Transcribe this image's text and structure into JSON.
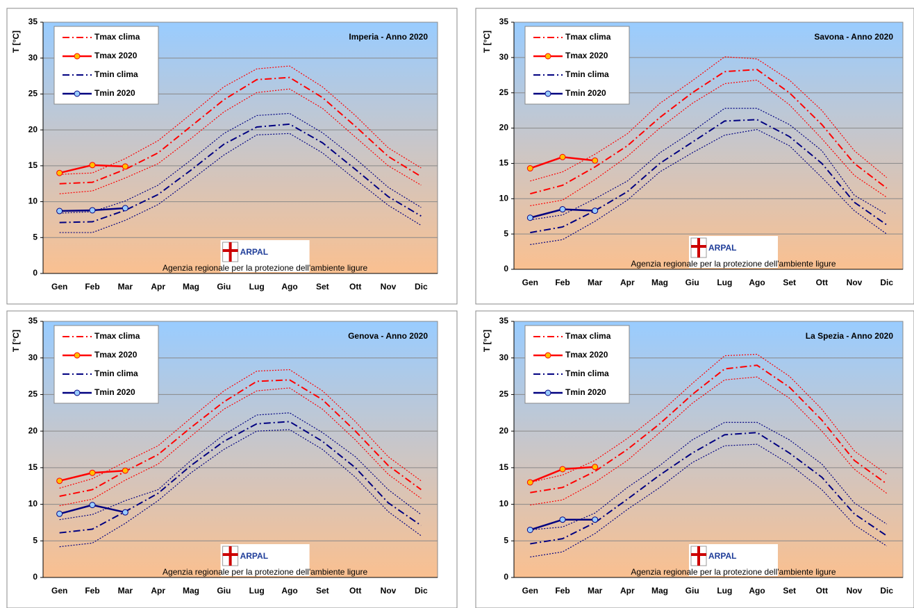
{
  "chart_data": [
    {
      "type": "line",
      "title": "Imperia - Anno 2020",
      "ylabel": "T [°C]",
      "categories": [
        "Gen",
        "Feb",
        "Mar",
        "Apr",
        "Mag",
        "Giu",
        "Lug",
        "Ago",
        "Set",
        "Ott",
        "Nov",
        "Dic"
      ],
      "ylim": [
        0,
        35
      ],
      "yticks": [
        0,
        5,
        10,
        15,
        20,
        25,
        30,
        35
      ],
      "grid": true,
      "legend": "upper left",
      "logo": {
        "text": "ARPAL",
        "caption": "Agenzia regionale per la protezione dell'ambiente ligure"
      },
      "series": [
        {
          "color": "#ff0000",
          "dash": "dot",
          "values": [
            13.8,
            14,
            16,
            18.5,
            22.2,
            26,
            28.5,
            28.9,
            26,
            22,
            17.5,
            14.7
          ]
        },
        {
          "color": "#ff0000",
          "dash": "dot",
          "values": [
            11.1,
            11.5,
            13.3,
            15.3,
            18.8,
            22.5,
            25.2,
            25.7,
            23,
            19,
            15,
            12.3
          ]
        },
        {
          "color": "#000080",
          "dash": "dot",
          "values": [
            8.4,
            8.6,
            10.1,
            12.3,
            15.8,
            19.5,
            22,
            22.3,
            19.6,
            16,
            12,
            9.2
          ]
        },
        {
          "color": "#000080",
          "dash": "dot",
          "values": [
            5.7,
            5.7,
            7.4,
            9.6,
            13,
            16.5,
            19.3,
            19.5,
            16.8,
            13.1,
            9.5,
            6.7
          ]
        },
        {
          "name": "Tmax clima",
          "color": "#ff0000",
          "dash": "dashdot",
          "values": [
            12.5,
            12.7,
            14.5,
            16.8,
            20.5,
            24.2,
            27,
            27.3,
            24.5,
            20.5,
            16.3,
            13.5
          ]
        },
        {
          "name": "Tmax 2020",
          "color": "#ff0000",
          "dash": "solid",
          "marker_color": "#ffc000",
          "values": [
            14,
            15.1,
            14.9,
            null,
            null,
            null,
            null,
            null,
            null,
            null,
            null,
            null
          ]
        },
        {
          "name": "Tmin clima",
          "color": "#000080",
          "dash": "dashdot",
          "values": [
            7.1,
            7.2,
            8.8,
            11,
            14.4,
            18,
            20.4,
            20.8,
            18.2,
            14.5,
            10.7,
            8
          ]
        },
        {
          "name": "Tmin 2020",
          "color": "#000080",
          "dash": "solid",
          "marker_color": "#99ccff",
          "values": [
            8.7,
            8.8,
            9.1,
            null,
            null,
            null,
            null,
            null,
            null,
            null,
            null,
            null
          ]
        }
      ]
    },
    {
      "type": "line",
      "title": "Savona - Anno 2020",
      "ylabel": "T [°C]",
      "categories": [
        "Gen",
        "Feb",
        "Mar",
        "Apr",
        "Mag",
        "Giu",
        "Lug",
        "Ago",
        "Set",
        "Ott",
        "Nov",
        "Dic"
      ],
      "ylim": [
        0,
        35
      ],
      "yticks": [
        0,
        5,
        10,
        15,
        20,
        25,
        30,
        35
      ],
      "grid": true,
      "legend": "upper left",
      "logo": {
        "text": "ARPAL",
        "caption": "Agenzia regionale per la protezione dell'ambiente ligure"
      },
      "series": [
        {
          "color": "#ff0000",
          "dash": "dot",
          "values": [
            12.5,
            13.8,
            16.3,
            19.2,
            23.5,
            26.7,
            30.1,
            29.8,
            26.8,
            22.5,
            16.8,
            13
          ]
        },
        {
          "color": "#ff0000",
          "dash": "dot",
          "values": [
            9,
            9.8,
            12.7,
            16,
            20,
            23.5,
            26.3,
            26.8,
            23.3,
            18.5,
            13.3,
            10.2
          ]
        },
        {
          "color": "#000080",
          "dash": "dot",
          "values": [
            7,
            7.7,
            10,
            12.5,
            16.5,
            19.5,
            22.8,
            22.8,
            20.5,
            16.8,
            10.5,
            7.8
          ]
        },
        {
          "color": "#000080",
          "dash": "dot",
          "values": [
            3.5,
            4.2,
            6.8,
            9.8,
            13.8,
            16.5,
            19,
            19.8,
            17.5,
            13,
            8.3,
            5
          ]
        },
        {
          "name": "Tmax clima",
          "color": "#ff0000",
          "dash": "dashdot",
          "values": [
            10.7,
            11.9,
            14.5,
            17.5,
            21.5,
            25,
            28,
            28.3,
            25,
            20.5,
            15,
            11.5
          ]
        },
        {
          "name": "Tmax 2020",
          "color": "#ff0000",
          "dash": "solid",
          "marker_color": "#ffc000",
          "values": [
            14.3,
            15.9,
            15.4,
            null,
            null,
            null,
            null,
            null,
            null,
            null,
            null,
            null
          ]
        },
        {
          "name": "Tmin clima",
          "color": "#000080",
          "dash": "dashdot",
          "values": [
            5.2,
            6,
            8.3,
            11,
            15,
            18,
            21,
            21.2,
            18.8,
            15,
            9.5,
            6.3
          ]
        },
        {
          "name": "Tmin 2020",
          "color": "#000080",
          "dash": "solid",
          "marker_color": "#99ccff",
          "values": [
            7.3,
            8.5,
            8.3,
            null,
            null,
            null,
            null,
            null,
            null,
            null,
            null,
            null
          ]
        }
      ]
    },
    {
      "type": "line",
      "title": "Genova - Anno 2020",
      "ylabel": "T [°C]",
      "categories": [
        "Gen",
        "Feb",
        "Mar",
        "Apr",
        "Mag",
        "Giu",
        "Lug",
        "Ago",
        "Set",
        "Ott",
        "Nov",
        "Dic"
      ],
      "ylim": [
        0,
        35
      ],
      "yticks": [
        0,
        5,
        10,
        15,
        20,
        25,
        30,
        35
      ],
      "grid": true,
      "legend": "upper left",
      "logo": {
        "text": "ARPAL",
        "caption": "Agenzia regionale per la protezione dell'ambiente ligure"
      },
      "series": [
        {
          "color": "#ff0000",
          "dash": "dot",
          "values": [
            12.2,
            13.5,
            15.8,
            18,
            21.8,
            25.5,
            28.2,
            28.4,
            25.5,
            21.3,
            16.5,
            13.2
          ]
        },
        {
          "color": "#ff0000",
          "dash": "dot",
          "values": [
            9.8,
            10.7,
            13.3,
            15.5,
            19.3,
            23,
            25.5,
            25.9,
            23,
            18.8,
            14.1,
            10.8
          ]
        },
        {
          "color": "#000080",
          "dash": "dot",
          "values": [
            7.9,
            8.6,
            10.5,
            12,
            16,
            19.5,
            22.2,
            22.5,
            19.8,
            16.5,
            12,
            8.6
          ]
        },
        {
          "color": "#000080",
          "dash": "dot",
          "values": [
            4.2,
            4.7,
            7.4,
            10.5,
            14.3,
            17.5,
            20,
            20.2,
            17.5,
            13.7,
            9,
            5.7
          ]
        },
        {
          "name": "Tmax clima",
          "color": "#ff0000",
          "dash": "dashdot",
          "values": [
            11.1,
            12,
            14.5,
            16.8,
            20.5,
            24,
            26.8,
            27,
            24.3,
            20,
            15.3,
            12
          ]
        },
        {
          "name": "Tmax 2020",
          "color": "#ff0000",
          "dash": "solid",
          "marker_color": "#ffc000",
          "values": [
            13.2,
            14.3,
            14.6,
            null,
            null,
            null,
            null,
            null,
            null,
            null,
            null,
            null
          ]
        },
        {
          "name": "Tmin clima",
          "color": "#000080",
          "dash": "dashdot",
          "values": [
            6.1,
            6.6,
            9,
            11.5,
            15.3,
            18.6,
            21,
            21.3,
            18.6,
            15,
            10.2,
            7.1
          ]
        },
        {
          "name": "Tmin 2020",
          "color": "#000080",
          "dash": "solid",
          "marker_color": "#99ccff",
          "values": [
            8.7,
            9.9,
            8.9,
            null,
            null,
            null,
            null,
            null,
            null,
            null,
            null,
            null
          ]
        }
      ]
    },
    {
      "type": "line",
      "title": "La Spezia - Anno 2020",
      "ylabel": "T [°C]",
      "categories": [
        "Gen",
        "Feb",
        "Mar",
        "Apr",
        "Mag",
        "Giu",
        "Lug",
        "Ago",
        "Set",
        "Ott",
        "Nov",
        "Dic"
      ],
      "ylim": [
        0,
        35
      ],
      "yticks": [
        0,
        5,
        10,
        15,
        20,
        25,
        30,
        35
      ],
      "grid": true,
      "legend": "upper left",
      "logo": {
        "text": "ARPAL",
        "caption": "Agenzia regionale per la protezione dell'ambiente ligure"
      },
      "series": [
        {
          "color": "#ff0000",
          "dash": "dot",
          "values": [
            13,
            14,
            16,
            19,
            22.5,
            26.5,
            30.3,
            30.5,
            27.5,
            23,
            17.3,
            14.1
          ]
        },
        {
          "color": "#ff0000",
          "dash": "dot",
          "values": [
            9.9,
            10.6,
            13,
            16,
            19.8,
            23.8,
            27,
            27.4,
            24.5,
            20,
            14.8,
            11.5
          ]
        },
        {
          "color": "#000080",
          "dash": "dot",
          "values": [
            6.5,
            6.9,
            8.8,
            12.3,
            15.3,
            18.8,
            21.2,
            21.2,
            18.8,
            15.5,
            10.2,
            7.3
          ]
        },
        {
          "color": "#000080",
          "dash": "dot",
          "values": [
            2.8,
            3.5,
            6,
            9.3,
            12.3,
            15.7,
            18,
            18.2,
            15.5,
            12,
            7.2,
            4.3
          ]
        },
        {
          "name": "Tmax clima",
          "color": "#ff0000",
          "dash": "dashdot",
          "values": [
            11.6,
            12.3,
            14.5,
            17.5,
            21,
            25,
            28.5,
            29,
            26,
            21.5,
            16,
            12.8
          ]
        },
        {
          "name": "Tmax 2020",
          "color": "#ff0000",
          "dash": "solid",
          "marker_color": "#ffc000",
          "values": [
            13,
            14.8,
            15.1,
            null,
            null,
            null,
            null,
            null,
            null,
            null,
            null,
            null
          ]
        },
        {
          "name": "Tmin clima",
          "color": "#000080",
          "dash": "dashdot",
          "values": [
            4.6,
            5.3,
            7.5,
            10.7,
            14,
            17,
            19.5,
            19.8,
            17,
            13.7,
            8.7,
            5.7
          ]
        },
        {
          "name": "Tmin 2020",
          "color": "#000080",
          "dash": "solid",
          "marker_color": "#99ccff",
          "values": [
            6.5,
            7.9,
            7.9,
            null,
            null,
            null,
            null,
            null,
            null,
            null,
            null,
            null
          ]
        }
      ]
    }
  ]
}
